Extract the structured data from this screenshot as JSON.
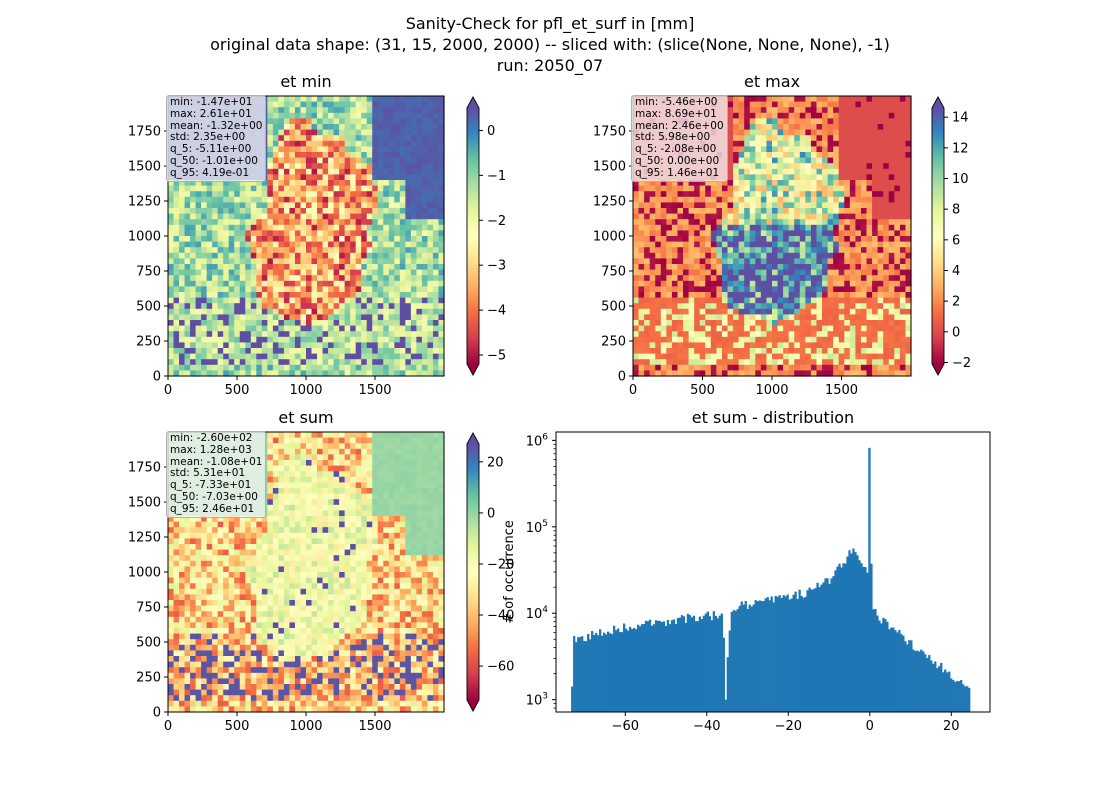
{
  "figure": {
    "title_lines": [
      "Sanity-Check for pfl_et_surf in [mm]",
      "original data shape: (31, 15, 2000, 2000) -- sliced with: (slice(None, None, None), -1)",
      "run: 2050_07"
    ]
  },
  "chart_data": [
    {
      "type": "heatmap",
      "title": "et min",
      "x_ticks": [
        0,
        500,
        1000,
        1500
      ],
      "y_ticks": [
        0,
        250,
        500,
        750,
        1000,
        1250,
        1500,
        1750
      ],
      "xlim": [
        0,
        2000
      ],
      "ylim": [
        0,
        2000
      ],
      "colormap": "Spectral",
      "colorbar": {
        "vmin": -5.2,
        "vmax": 0.5,
        "ticks": [
          0,
          -1,
          -2,
          -3,
          -4,
          -5
        ],
        "tick_labels": [
          "0",
          "−1",
          "−2",
          "−3",
          "−4",
          "−5"
        ],
        "extend": "both"
      },
      "stats": [
        "min: -1.47e+01",
        "max: 2.61e+01",
        "mean: -1.32e+00",
        "std: 2.35e+00",
        "q_5: -5.11e+00",
        "q_50: -1.01e+00",
        "q_95: 4.19e-01"
      ]
    },
    {
      "type": "heatmap",
      "title": "et max",
      "x_ticks": [
        0,
        500,
        1000,
        1500
      ],
      "y_ticks": [
        0,
        250,
        500,
        750,
        1000,
        1250,
        1500,
        1750
      ],
      "xlim": [
        0,
        2000
      ],
      "ylim": [
        0,
        2000
      ],
      "colormap": "Spectral",
      "colorbar": {
        "vmin": -2.1,
        "vmax": 14.6,
        "ticks": [
          14,
          12,
          10,
          8,
          6,
          4,
          2,
          0,
          -2
        ],
        "tick_labels": [
          "14",
          "12",
          "10",
          "8",
          "6",
          "4",
          "2",
          "0",
          "−2"
        ],
        "extend": "both"
      },
      "stats": [
        "min: -5.46e+00",
        "max: 8.69e+01",
        "mean: 2.46e+00",
        "std: 5.98e+00",
        "q_5: -2.08e+00",
        "q_50: 0.00e+00",
        "q_95: 1.46e+01"
      ]
    },
    {
      "type": "heatmap",
      "title": "et sum",
      "x_ticks": [
        0,
        500,
        1000,
        1500
      ],
      "y_ticks": [
        0,
        250,
        500,
        750,
        1000,
        1250,
        1500,
        1750
      ],
      "xlim": [
        0,
        2000
      ],
      "ylim": [
        0,
        2000
      ],
      "colormap": "Spectral",
      "colorbar": {
        "vmin": -73.3,
        "vmax": 27,
        "ticks": [
          20,
          0,
          -20,
          -40,
          -60
        ],
        "tick_labels": [
          "20",
          "0",
          "−20",
          "−40",
          "−60"
        ],
        "extend": "both"
      },
      "stats": [
        "min: -2.60e+02",
        "max: 1.28e+03",
        "mean: -1.08e+01",
        "std: 5.31e+01",
        "q_5: -7.33e+01",
        "q_50: -7.03e+00",
        "q_95: 2.46e+01"
      ]
    },
    {
      "type": "bar",
      "title": "et sum - distribution",
      "ylabel": "# of occurrence",
      "y_scale": "log",
      "xlim": [
        -77,
        29.5
      ],
      "ylim": [
        720,
        1250000
      ],
      "x_ticks": [
        -60,
        -40,
        -20,
        0,
        20
      ],
      "x_tick_labels": [
        "−60",
        "−40",
        "−20",
        "0",
        "20"
      ],
      "y_ticks": [
        1000,
        10000,
        100000,
        1000000
      ],
      "y_tick_labels": [
        "10^3",
        "10^4",
        "10^5",
        "10^6"
      ],
      "bar_color": "#1f77b4",
      "bin_range": [
        -73.3,
        24.6
      ],
      "approx_counts": [
        {
          "x": -73,
          "y": 4800
        },
        {
          "x": -65,
          "y": 6300
        },
        {
          "x": -55,
          "y": 7500
        },
        {
          "x": -45,
          "y": 8800
        },
        {
          "x": -36,
          "y": 9800
        },
        {
          "x": -35.5,
          "y": 1000
        },
        {
          "x": -34,
          "y": 11500
        },
        {
          "x": -25,
          "y": 14000
        },
        {
          "x": -15,
          "y": 17500
        },
        {
          "x": -10,
          "y": 24000
        },
        {
          "x": -6,
          "y": 42000
        },
        {
          "x": -4,
          "y": 58000
        },
        {
          "x": -2,
          "y": 40000
        },
        {
          "x": -0.5,
          "y": 30000
        },
        {
          "x": 0,
          "y": 820000
        },
        {
          "x": 0.5,
          "y": 11000
        },
        {
          "x": 5,
          "y": 7000
        },
        {
          "x": 10,
          "y": 4500
        },
        {
          "x": 15,
          "y": 3000
        },
        {
          "x": 20,
          "y": 2000
        },
        {
          "x": 24.5,
          "y": 1300
        }
      ]
    }
  ]
}
